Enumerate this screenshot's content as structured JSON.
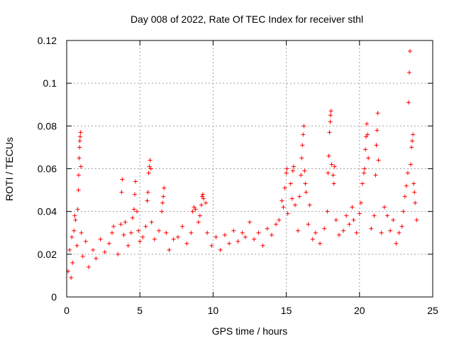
{
  "chart_data": {
    "type": "scatter",
    "title": "Day 008 of 2022, Rate Of TEC Index for receiver sthl",
    "xlabel": "GPS time / hours",
    "ylabel": "ROTI / TECUs",
    "xlim": [
      0,
      25
    ],
    "ylim": [
      0,
      0.12
    ],
    "xticks": [
      0,
      5,
      10,
      15,
      20,
      25
    ],
    "xtick_labels": [
      "0",
      "5",
      "10",
      "15",
      "20",
      "25"
    ],
    "yticks": [
      0,
      0.02,
      0.04,
      0.06,
      0.08,
      0.1,
      0.12
    ],
    "ytick_labels": [
      "0",
      "0.02",
      "0.04",
      "0.06",
      "0.08",
      "0.1",
      "0.12"
    ],
    "grid": true,
    "marker": "plus",
    "series_color": "#ff0000",
    "points": [
      [
        0.1,
        0.012
      ],
      [
        0.2,
        0.022
      ],
      [
        0.3,
        0.009
      ],
      [
        0.35,
        0.028
      ],
      [
        0.4,
        0.016
      ],
      [
        0.5,
        0.031
      ],
      [
        0.55,
        0.038
      ],
      [
        0.6,
        0.036
      ],
      [
        0.7,
        0.024
      ],
      [
        0.75,
        0.041
      ],
      [
        0.8,
        0.05
      ],
      [
        0.82,
        0.057
      ],
      [
        0.85,
        0.065
      ],
      [
        0.88,
        0.07
      ],
      [
        0.9,
        0.073
      ],
      [
        0.92,
        0.075
      ],
      [
        0.95,
        0.077
      ],
      [
        0.97,
        0.061
      ],
      [
        1.0,
        0.03
      ],
      [
        1.1,
        0.019
      ],
      [
        1.3,
        0.026
      ],
      [
        1.5,
        0.014
      ],
      [
        1.8,
        0.022
      ],
      [
        2.0,
        0.018
      ],
      [
        2.3,
        0.027
      ],
      [
        2.6,
        0.021
      ],
      [
        2.9,
        0.025
      ],
      [
        3.1,
        0.03
      ],
      [
        3.2,
        0.033
      ],
      [
        3.5,
        0.02
      ],
      [
        3.7,
        0.034
      ],
      [
        3.75,
        0.049
      ],
      [
        3.8,
        0.055
      ],
      [
        3.9,
        0.029
      ],
      [
        4.0,
        0.035
      ],
      [
        4.2,
        0.024
      ],
      [
        4.4,
        0.03
      ],
      [
        4.5,
        0.037
      ],
      [
        4.6,
        0.041
      ],
      [
        4.65,
        0.048
      ],
      [
        4.7,
        0.054
      ],
      [
        4.8,
        0.04
      ],
      [
        4.9,
        0.031
      ],
      [
        5.0,
        0.026
      ],
      [
        5.2,
        0.028
      ],
      [
        5.4,
        0.033
      ],
      [
        5.5,
        0.045
      ],
      [
        5.55,
        0.049
      ],
      [
        5.6,
        0.058
      ],
      [
        5.65,
        0.061
      ],
      [
        5.7,
        0.064
      ],
      [
        5.75,
        0.06
      ],
      [
        5.8,
        0.035
      ],
      [
        6.0,
        0.027
      ],
      [
        6.3,
        0.031
      ],
      [
        6.5,
        0.04
      ],
      [
        6.55,
        0.044
      ],
      [
        6.6,
        0.047
      ],
      [
        6.65,
        0.051
      ],
      [
        6.8,
        0.03
      ],
      [
        7.0,
        0.022
      ],
      [
        7.3,
        0.027
      ],
      [
        7.6,
        0.028
      ],
      [
        7.9,
        0.033
      ],
      [
        8.2,
        0.025
      ],
      [
        8.5,
        0.03
      ],
      [
        8.6,
        0.04
      ],
      [
        8.7,
        0.042
      ],
      [
        8.8,
        0.041
      ],
      [
        9.0,
        0.035
      ],
      [
        9.1,
        0.038
      ],
      [
        9.2,
        0.043
      ],
      [
        9.25,
        0.047
      ],
      [
        9.3,
        0.048
      ],
      [
        9.35,
        0.046
      ],
      [
        9.5,
        0.044
      ],
      [
        9.6,
        0.03
      ],
      [
        9.9,
        0.024
      ],
      [
        10.2,
        0.028
      ],
      [
        10.5,
        0.022
      ],
      [
        10.8,
        0.029
      ],
      [
        11.1,
        0.025
      ],
      [
        11.4,
        0.031
      ],
      [
        11.7,
        0.026
      ],
      [
        12.0,
        0.03
      ],
      [
        12.2,
        0.028
      ],
      [
        12.5,
        0.035
      ],
      [
        12.8,
        0.027
      ],
      [
        13.1,
        0.03
      ],
      [
        13.4,
        0.024
      ],
      [
        13.7,
        0.032
      ],
      [
        14.0,
        0.029
      ],
      [
        14.3,
        0.034
      ],
      [
        14.5,
        0.036
      ],
      [
        14.7,
        0.045
      ],
      [
        14.8,
        0.042
      ],
      [
        14.9,
        0.051
      ],
      [
        15.0,
        0.058
      ],
      [
        15.05,
        0.06
      ],
      [
        15.1,
        0.039
      ],
      [
        15.3,
        0.053
      ],
      [
        15.4,
        0.046
      ],
      [
        15.45,
        0.059
      ],
      [
        15.5,
        0.061
      ],
      [
        15.6,
        0.043
      ],
      [
        15.8,
        0.031
      ],
      [
        15.9,
        0.047
      ],
      [
        16.0,
        0.057
      ],
      [
        16.05,
        0.065
      ],
      [
        16.1,
        0.071
      ],
      [
        16.15,
        0.076
      ],
      [
        16.2,
        0.08
      ],
      [
        16.25,
        0.059
      ],
      [
        16.3,
        0.053
      ],
      [
        16.35,
        0.049
      ],
      [
        16.5,
        0.034
      ],
      [
        16.6,
        0.043
      ],
      [
        16.8,
        0.027
      ],
      [
        17.0,
        0.03
      ],
      [
        17.3,
        0.025
      ],
      [
        17.6,
        0.032
      ],
      [
        17.8,
        0.04
      ],
      [
        17.85,
        0.058
      ],
      [
        17.9,
        0.066
      ],
      [
        17.95,
        0.077
      ],
      [
        18.0,
        0.082
      ],
      [
        18.02,
        0.085
      ],
      [
        18.05,
        0.087
      ],
      [
        18.1,
        0.062
      ],
      [
        18.2,
        0.057
      ],
      [
        18.25,
        0.053
      ],
      [
        18.3,
        0.061
      ],
      [
        18.4,
        0.036
      ],
      [
        18.6,
        0.029
      ],
      [
        18.9,
        0.031
      ],
      [
        19.1,
        0.038
      ],
      [
        19.3,
        0.034
      ],
      [
        19.5,
        0.042
      ],
      [
        19.6,
        0.036
      ],
      [
        19.8,
        0.03
      ],
      [
        20.0,
        0.039
      ],
      [
        20.1,
        0.044
      ],
      [
        20.2,
        0.053
      ],
      [
        20.3,
        0.058
      ],
      [
        20.35,
        0.06
      ],
      [
        20.4,
        0.069
      ],
      [
        20.45,
        0.075
      ],
      [
        20.5,
        0.081
      ],
      [
        20.55,
        0.076
      ],
      [
        20.6,
        0.065
      ],
      [
        20.8,
        0.032
      ],
      [
        21.0,
        0.038
      ],
      [
        21.1,
        0.057
      ],
      [
        21.15,
        0.071
      ],
      [
        21.2,
        0.078
      ],
      [
        21.25,
        0.086
      ],
      [
        21.3,
        0.064
      ],
      [
        21.5,
        0.03
      ],
      [
        21.7,
        0.042
      ],
      [
        21.9,
        0.038
      ],
      [
        22.1,
        0.031
      ],
      [
        22.3,
        0.036
      ],
      [
        22.5,
        0.025
      ],
      [
        22.7,
        0.03
      ],
      [
        22.9,
        0.033
      ],
      [
        23.0,
        0.04
      ],
      [
        23.1,
        0.047
      ],
      [
        23.2,
        0.052
      ],
      [
        23.3,
        0.058
      ],
      [
        23.35,
        0.091
      ],
      [
        23.4,
        0.105
      ],
      [
        23.45,
        0.115
      ],
      [
        23.5,
        0.062
      ],
      [
        23.55,
        0.07
      ],
      [
        23.6,
        0.073
      ],
      [
        23.65,
        0.076
      ],
      [
        23.7,
        0.053
      ],
      [
        23.75,
        0.049
      ],
      [
        23.8,
        0.044
      ],
      [
        23.9,
        0.036
      ]
    ]
  }
}
